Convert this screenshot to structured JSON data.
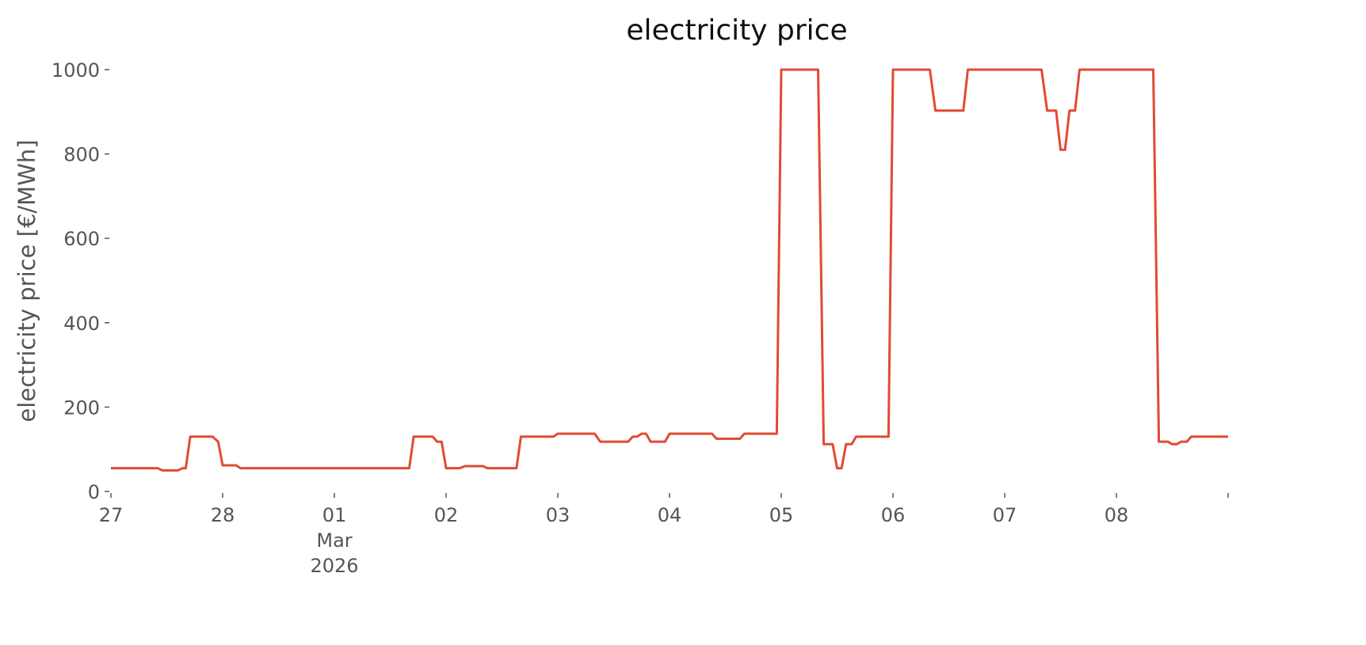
{
  "chart_data": {
    "type": "line",
    "title": "electricity price",
    "ylabel": "electricity price [€/MWh]",
    "x": [
      0,
      0.42,
      0.46,
      0.6,
      0.64,
      0.67,
      0.71,
      0.91,
      0.96,
      1.0,
      1.12,
      1.16,
      2.67,
      2.71,
      2.88,
      2.92,
      2.96,
      3.0,
      3.12,
      3.17,
      3.33,
      3.37,
      3.63,
      3.67,
      3.96,
      4.0,
      4.33,
      4.38,
      4.63,
      4.67,
      4.71,
      4.75,
      4.79,
      4.83,
      4.96,
      5.0,
      5.38,
      5.42,
      5.63,
      5.67,
      5.96,
      6.0,
      6.33,
      6.38,
      6.46,
      6.5,
      6.54,
      6.58,
      6.63,
      6.67,
      6.96,
      7.0,
      7.33,
      7.38,
      7.63,
      7.67,
      8.33,
      8.38,
      8.46,
      8.5,
      8.54,
      8.58,
      8.63,
      8.67,
      9.33,
      9.38,
      9.46,
      9.5,
      9.54,
      9.58,
      9.63,
      9.67,
      10.0
    ],
    "series": [
      {
        "name": "electricity price",
        "color": "#e24a33",
        "values": [
          55,
          55,
          50,
          50,
          55,
          55,
          130,
          130,
          118,
          62,
          62,
          55,
          55,
          130,
          130,
          118,
          118,
          55,
          55,
          60,
          60,
          55,
          55,
          130,
          130,
          137,
          137,
          118,
          118,
          130,
          130,
          137,
          137,
          118,
          118,
          137,
          137,
          125,
          125,
          137,
          137,
          1000,
          1000,
          112,
          112,
          55,
          55,
          112,
          112,
          130,
          130,
          1000,
          1000,
          903,
          903,
          1000,
          1000,
          903,
          903,
          810,
          810,
          903,
          903,
          1000,
          1000,
          118,
          118,
          112,
          112,
          118,
          118,
          130,
          130
        ]
      }
    ],
    "xlim": [
      0,
      10
    ],
    "ylim": [
      0,
      1000
    ],
    "xticks": [
      {
        "value": 0,
        "label": "27"
      },
      {
        "value": 1,
        "label": "28"
      },
      {
        "value": 2,
        "label": "01\nMar\n2026"
      },
      {
        "value": 3,
        "label": "02"
      },
      {
        "value": 4,
        "label": "03"
      },
      {
        "value": 5,
        "label": "04"
      },
      {
        "value": 6,
        "label": "05"
      },
      {
        "value": 7,
        "label": "06"
      },
      {
        "value": 8,
        "label": "07"
      },
      {
        "value": 9,
        "label": "08"
      },
      {
        "value": 10,
        "label": null
      }
    ],
    "yticks": [
      0,
      200,
      400,
      600,
      800,
      1000
    ],
    "grid": false
  }
}
